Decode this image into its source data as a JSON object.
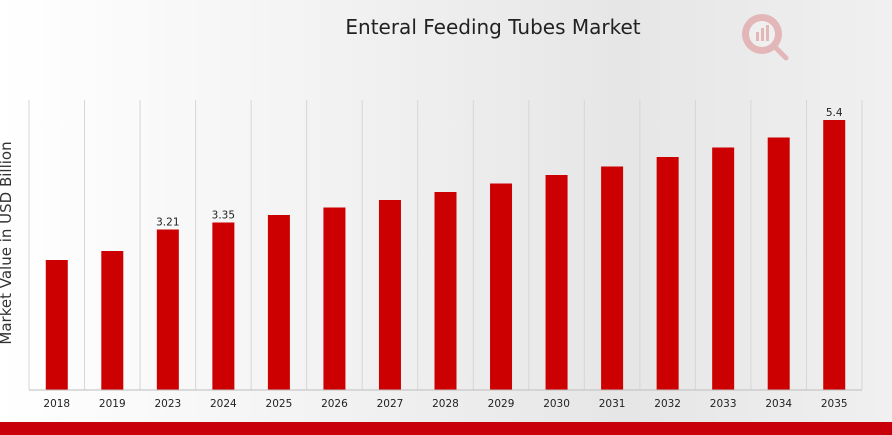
{
  "chart_data": {
    "type": "bar",
    "title": "Enteral Feeding Tubes Market",
    "xlabel": "",
    "ylabel": "Market Value in USD Billion",
    "categories": [
      "2018",
      "2019",
      "2023",
      "2024",
      "2025",
      "2026",
      "2027",
      "2028",
      "2029",
      "2030",
      "2031",
      "2032",
      "2033",
      "2034",
      "2035"
    ],
    "values": [
      2.6,
      2.78,
      3.21,
      3.35,
      3.5,
      3.65,
      3.8,
      3.96,
      4.13,
      4.3,
      4.47,
      4.66,
      4.85,
      5.05,
      5.4
    ],
    "data_labels": [
      "",
      "",
      "3.21",
      "3.35",
      "",
      "",
      "",
      "",
      "",
      "",
      "",
      "",
      "",
      "",
      "5.4"
    ],
    "ylim": [
      0,
      5.8
    ],
    "grid": "vertical",
    "legend": "none",
    "colors": {
      "bar": "#cc0000",
      "grid": "#d6d6d6",
      "band": "#c8000a",
      "text": "#222222"
    }
  },
  "logo": {
    "name": "mrfr-logo-icon"
  }
}
